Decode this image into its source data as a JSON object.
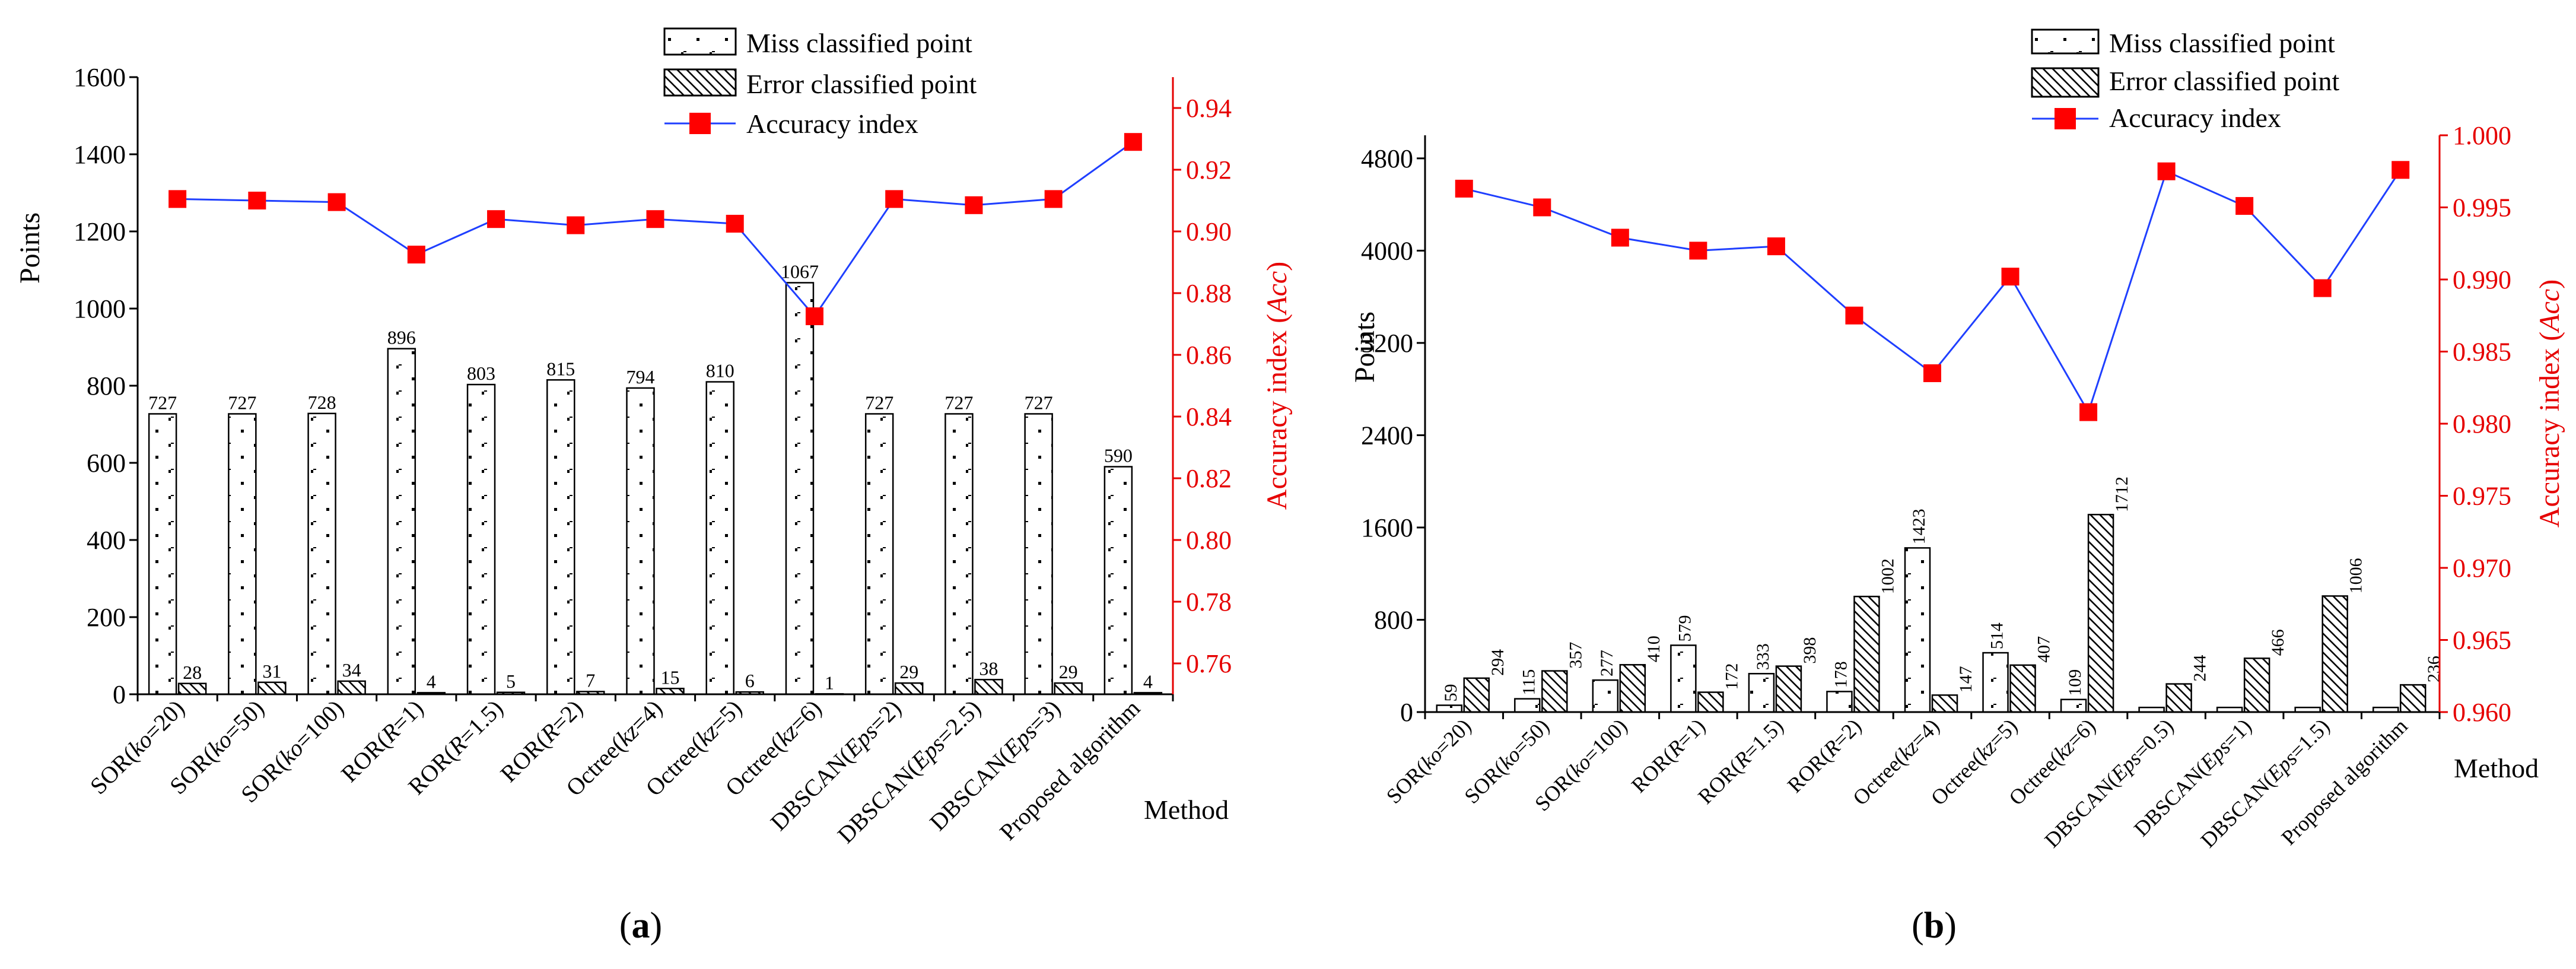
{
  "figure": {
    "panel_a_label": "(a)",
    "panel_b_label": "(b)"
  },
  "legend": {
    "miss": "Miss classified point",
    "error": "Error classified point",
    "acc": "Accuracy index"
  },
  "colors": {
    "accuracy_line": "#1f3fff",
    "accuracy_marker": "#ff0000",
    "right_axis": "#e60000",
    "axis": "#000000"
  },
  "chart_data": [
    {
      "type": "bar",
      "title": "(a)",
      "xlabel": "Method",
      "ylabel": "Points",
      "y2label": "Accuracy index (Acc)",
      "ylim": [
        0,
        1600
      ],
      "yticks": [
        0,
        200,
        400,
        600,
        800,
        1000,
        1200,
        1400,
        1600
      ],
      "y2lim": [
        0.75,
        0.95
      ],
      "y2ticks": [
        0.76,
        0.78,
        0.8,
        0.82,
        0.84,
        0.86,
        0.88,
        0.9,
        0.92,
        0.94
      ],
      "y2ticklabels": [
        "0.76",
        "0.78",
        "0.80",
        "0.82",
        "0.84",
        "0.86",
        "0.88",
        "0.90",
        "0.92",
        "0.94"
      ],
      "categories": [
        "SOR(ko=20)",
        "SOR(ko=50)",
        "SOR(ko=100)",
        "ROR(R=1)",
        "ROR(R=1.5)",
        "ROR(R=2)",
        "Octree(kz=4)",
        "Octree(kz=5)",
        "Octree(kz=6)",
        "DBSCAN(Eps=2)",
        "DBSCAN(Eps=2.5)",
        "DBSCAN(Eps=3)",
        "Proposed algorithm"
      ],
      "series": [
        {
          "name": "Miss classified point",
          "values": [
            727,
            727,
            728,
            896,
            803,
            815,
            794,
            810,
            1067,
            727,
            727,
            727,
            590
          ],
          "labels": [
            "727",
            "727",
            "728",
            "896",
            "803",
            "815",
            "794",
            "810",
            "1067",
            "727",
            "727",
            "727",
            "590"
          ]
        },
        {
          "name": "Error classified point",
          "values": [
            28,
            31,
            34,
            4,
            5,
            7,
            15,
            6,
            1,
            29,
            38,
            29,
            4
          ],
          "labels": [
            "28",
            "31",
            "34",
            "4",
            "5",
            "7",
            "15",
            "6",
            "1",
            "29",
            "38",
            "29",
            "4"
          ]
        },
        {
          "name": "Accuracy index",
          "axis": "right",
          "values": [
            0.9105,
            0.91,
            0.9095,
            0.8925,
            0.904,
            0.902,
            0.904,
            0.9025,
            0.8725,
            0.9105,
            0.9085,
            0.9105,
            0.929
          ]
        }
      ]
    },
    {
      "type": "bar",
      "title": "(b)",
      "xlabel": "Method",
      "ylabel": "Points",
      "y2label": "Accuracy index (Acc)",
      "ylim": [
        0,
        5000
      ],
      "yticks": [
        0,
        800,
        1600,
        2400,
        3200,
        4000,
        4800
      ],
      "y2lim": [
        0.96,
        1.0
      ],
      "y2ticks": [
        0.96,
        0.965,
        0.97,
        0.975,
        0.98,
        0.985,
        0.99,
        0.995,
        1.0
      ],
      "y2ticklabels": [
        "0.960",
        "0.965",
        "0.970",
        "0.975",
        "0.980",
        "0.985",
        "0.990",
        "0.995",
        "1.000"
      ],
      "categories": [
        "SOR(ko=20)",
        "SOR(ko=50)",
        "SOR(ko=100)",
        "ROR(R=1)",
        "ROR(R=1.5)",
        "ROR(R=2)",
        "Octree(kz=4)",
        "Octree(kz=5)",
        "Octree(kz=6)",
        "DBSCAN(Eps=0.5)",
        "DBSCAN(Eps=1)",
        "DBSCAN(Eps=1.5)",
        "Proposed algorithm"
      ],
      "series": [
        {
          "name": "Miss classified point",
          "values": [
            59,
            115,
            277,
            579,
            333,
            178,
            1423,
            514,
            109,
            40,
            40,
            40,
            40
          ],
          "labels": [
            "59",
            "115",
            "277",
            "579",
            "333",
            "178",
            "1423",
            "514",
            "109",
            "",
            "",
            "",
            ""
          ]
        },
        {
          "name": "Error classified point",
          "values": [
            294,
            357,
            410,
            172,
            398,
            1002,
            147,
            407,
            1712,
            244,
            466,
            1006,
            236
          ],
          "labels": [
            "294",
            "357",
            "410",
            "172",
            "398",
            "1002",
            "147",
            "407",
            "1712",
            "244",
            "466",
            "1006",
            "236"
          ]
        },
        {
          "name": "Accuracy index",
          "axis": "right",
          "values": [
            0.9963,
            0.995,
            0.9929,
            0.992,
            0.9923,
            0.9875,
            0.9835,
            0.9902,
            0.9808,
            0.9975,
            0.9951,
            0.9894,
            0.9976
          ]
        }
      ]
    }
  ]
}
